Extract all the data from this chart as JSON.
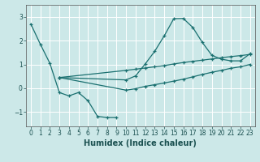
{
  "xlabel": "Humidex (Indice chaleur)",
  "bg_color": "#cce8e8",
  "grid_color": "#b0d8d8",
  "line_color": "#1a7070",
  "xlim": [
    -0.5,
    23.5
  ],
  "ylim": [
    -1.6,
    3.5
  ],
  "yticks": [
    -1,
    0,
    1,
    2,
    3
  ],
  "xticks": [
    0,
    1,
    2,
    3,
    4,
    5,
    6,
    7,
    8,
    9,
    10,
    11,
    12,
    13,
    14,
    15,
    16,
    17,
    18,
    19,
    20,
    21,
    22,
    23
  ],
  "series1_x": [
    0,
    1,
    2,
    3,
    4,
    5,
    6,
    7,
    8,
    9
  ],
  "series1_y": [
    2.7,
    1.85,
    1.05,
    -0.18,
    -0.32,
    -0.18,
    -0.52,
    -1.18,
    -1.23,
    -1.23
  ],
  "series2_x": [
    3,
    10,
    11,
    12,
    13,
    14,
    15,
    16,
    17,
    18,
    19,
    20,
    21,
    22,
    23
  ],
  "series2_y": [
    0.45,
    0.35,
    0.52,
    1.02,
    1.55,
    2.2,
    2.92,
    2.93,
    2.55,
    1.92,
    1.38,
    1.22,
    1.15,
    1.15,
    1.45
  ],
  "series3_x": [
    3,
    10,
    11,
    12,
    13,
    14,
    15,
    16,
    17,
    18,
    19,
    20,
    21,
    22,
    23
  ],
  "series3_y": [
    0.45,
    0.75,
    0.8,
    0.85,
    0.9,
    0.95,
    1.02,
    1.08,
    1.13,
    1.18,
    1.23,
    1.28,
    1.33,
    1.37,
    1.42
  ],
  "series4_x": [
    3,
    10,
    11,
    12,
    13,
    14,
    15,
    16,
    17,
    18,
    19,
    20,
    21,
    22,
    23
  ],
  "series4_y": [
    0.45,
    -0.08,
    -0.02,
    0.08,
    0.15,
    0.22,
    0.3,
    0.38,
    0.48,
    0.58,
    0.67,
    0.75,
    0.84,
    0.9,
    1.0
  ]
}
